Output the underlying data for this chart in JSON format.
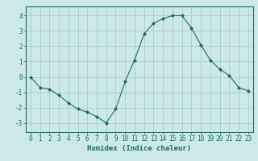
{
  "x": [
    0,
    1,
    2,
    3,
    4,
    5,
    6,
    7,
    8,
    9,
    10,
    11,
    12,
    13,
    14,
    15,
    16,
    17,
    18,
    19,
    20,
    21,
    22,
    23
  ],
  "y": [
    0.0,
    -0.7,
    -0.8,
    -1.2,
    -1.7,
    -2.1,
    -2.3,
    -2.6,
    -3.0,
    -2.1,
    -0.3,
    1.1,
    2.8,
    3.5,
    3.8,
    4.0,
    4.0,
    3.2,
    2.1,
    1.1,
    0.5,
    0.1,
    -0.7,
    -0.9
  ],
  "line_color": "#1a6b5e",
  "marker": "D",
  "marker_size": 2.0,
  "bg_color": "#cce8e8",
  "grid_color": "#aacccc",
  "xlabel": "Humidex (Indice chaleur)",
  "ylim": [
    -3.6,
    4.6
  ],
  "xlim": [
    -0.5,
    23.5
  ],
  "yticks": [
    -3,
    -2,
    -1,
    0,
    1,
    2,
    3,
    4
  ],
  "xticks": [
    0,
    1,
    2,
    3,
    4,
    5,
    6,
    7,
    8,
    9,
    10,
    11,
    12,
    13,
    14,
    15,
    16,
    17,
    18,
    19,
    20,
    21,
    22,
    23
  ],
  "tick_color": "#1a6b5e",
  "label_fontsize": 6.5,
  "tick_fontsize": 5.5
}
